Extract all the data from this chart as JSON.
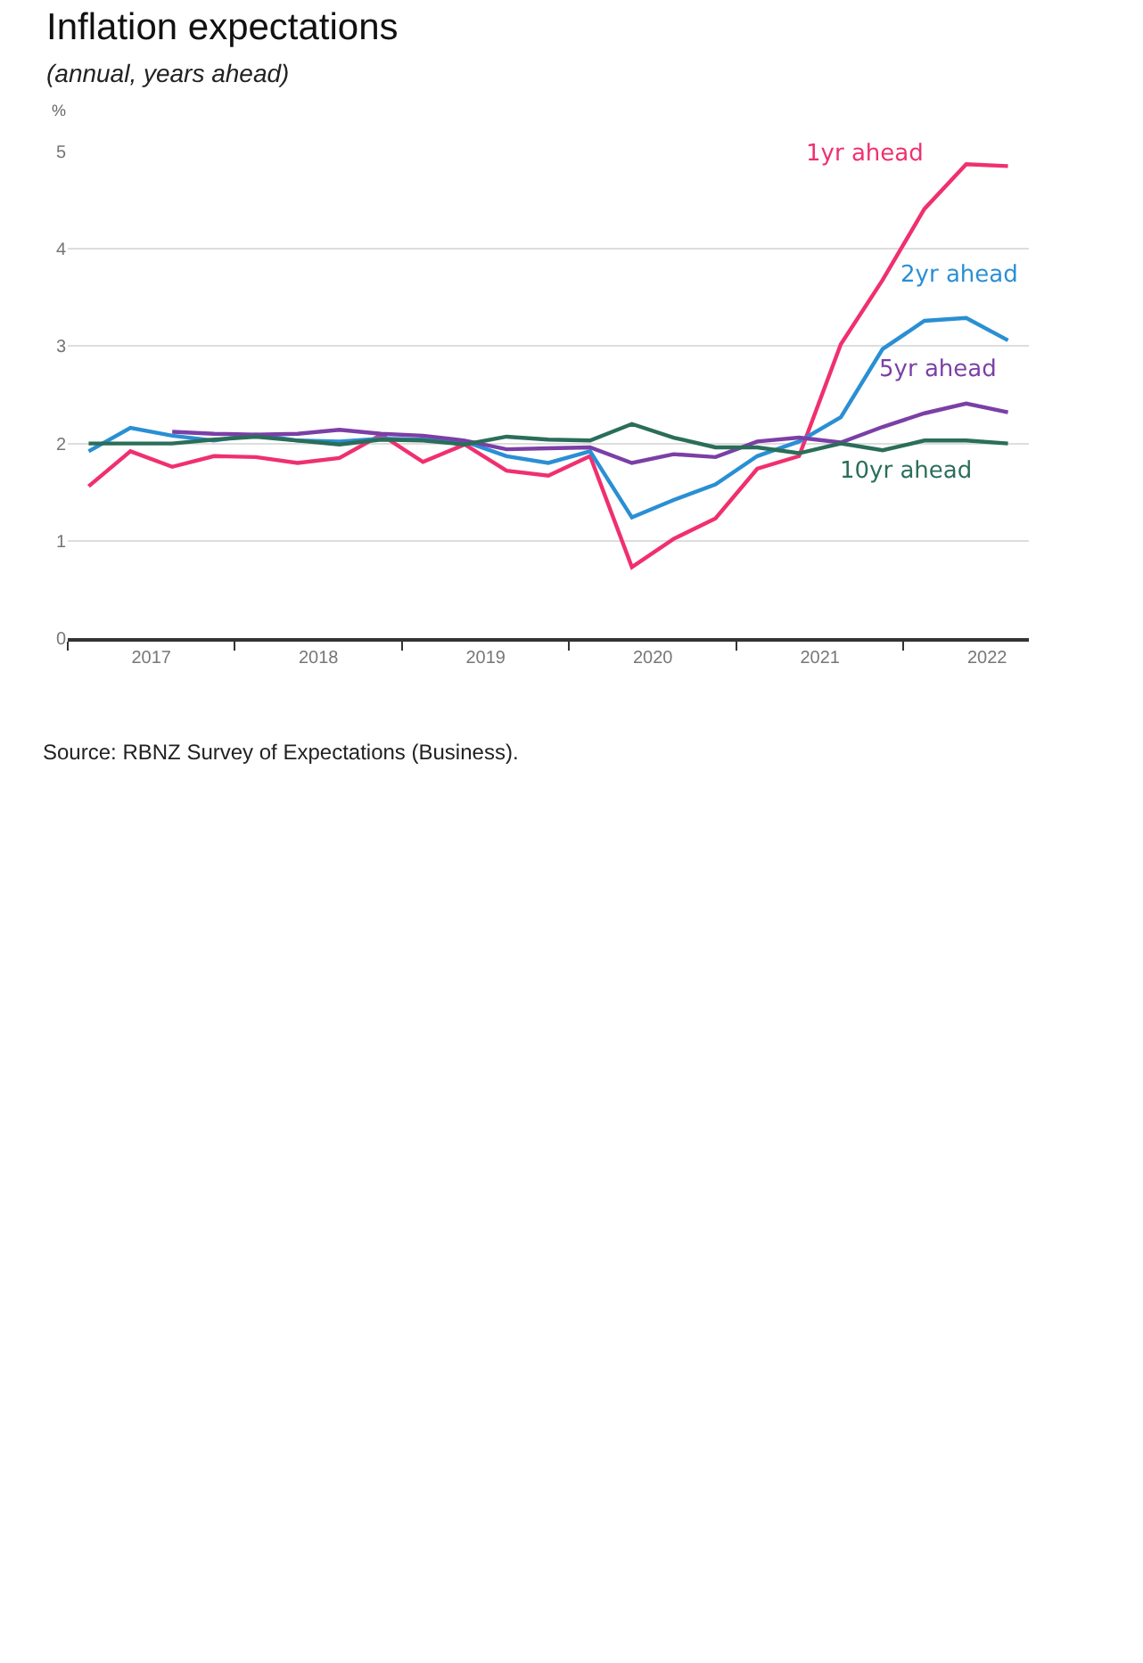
{
  "chart_data": {
    "type": "line",
    "title": "Inflation expectations",
    "subtitle": "(annual, years ahead)",
    "ylabel": "%",
    "x": [
      2017.125,
      2017.375,
      2017.625,
      2017.875,
      2018.125,
      2018.375,
      2018.625,
      2018.875,
      2019.125,
      2019.375,
      2019.625,
      2019.875,
      2020.125,
      2020.375,
      2020.625,
      2020.875,
      2021.125,
      2021.375,
      2021.625,
      2021.875,
      2022.125,
      2022.375,
      2022.625
    ],
    "series": [
      {
        "name": "1yr ahead",
        "color": "#f0306e",
        "values": [
          1.56,
          1.92,
          1.76,
          1.87,
          1.86,
          1.8,
          1.85,
          2.09,
          1.81,
          1.99,
          1.72,
          1.67,
          1.87,
          0.73,
          1.02,
          1.23,
          1.74,
          1.87,
          3.02,
          3.68,
          4.41,
          4.87,
          4.85
        ]
      },
      {
        "name": "2yr ahead",
        "color": "#2a8fd4",
        "values": [
          1.92,
          2.16,
          2.08,
          2.03,
          2.09,
          2.03,
          2.02,
          2.05,
          2.04,
          2.02,
          1.87,
          1.8,
          1.92,
          1.24,
          1.42,
          1.58,
          1.87,
          2.02,
          2.27,
          2.97,
          3.26,
          3.29,
          3.06
        ]
      },
      {
        "name": "5yr ahead",
        "color": "#7b3fa6",
        "values": [
          null,
          null,
          2.12,
          2.1,
          2.09,
          2.1,
          2.14,
          2.1,
          2.08,
          2.03,
          1.94,
          1.95,
          1.96,
          1.8,
          1.89,
          1.86,
          2.02,
          2.06,
          2.01,
          2.17,
          2.31,
          2.41,
          2.32
        ]
      },
      {
        "name": "10yr ahead",
        "color": "#2a6e5a",
        "values": [
          2.0,
          2.0,
          2.0,
          2.04,
          2.07,
          2.03,
          1.99,
          2.04,
          2.03,
          1.99,
          2.07,
          2.04,
          2.03,
          2.2,
          2.06,
          1.96,
          1.96,
          1.9,
          2.0,
          1.93,
          2.03,
          2.03,
          2.0
        ]
      }
    ],
    "xlim": [
      2017,
      2022.75
    ],
    "xticks": [
      {
        "value": 2017,
        "label": null
      },
      {
        "value": 2018,
        "label": null
      },
      {
        "value": 2019,
        "label": null
      },
      {
        "value": 2020,
        "label": null
      },
      {
        "value": 2021,
        "label": null
      },
      {
        "value": 2022,
        "label": null
      },
      {
        "value": 2017.5,
        "label": "2017"
      },
      {
        "value": 2018.5,
        "label": "2018"
      },
      {
        "value": 2019.5,
        "label": "2019"
      },
      {
        "value": 2020.5,
        "label": "2020"
      },
      {
        "value": 2021.5,
        "label": "2021"
      },
      {
        "value": 2022.5,
        "label": "2022"
      }
    ],
    "ylim": [
      0,
      5
    ],
    "yticks": [
      0,
      1,
      2,
      3,
      4,
      5
    ],
    "grid": "y",
    "legend": false,
    "marker": "none",
    "line_style": "solid",
    "annotations": [
      "Source: RBNZ Survey of Expectations (Business)."
    ]
  }
}
